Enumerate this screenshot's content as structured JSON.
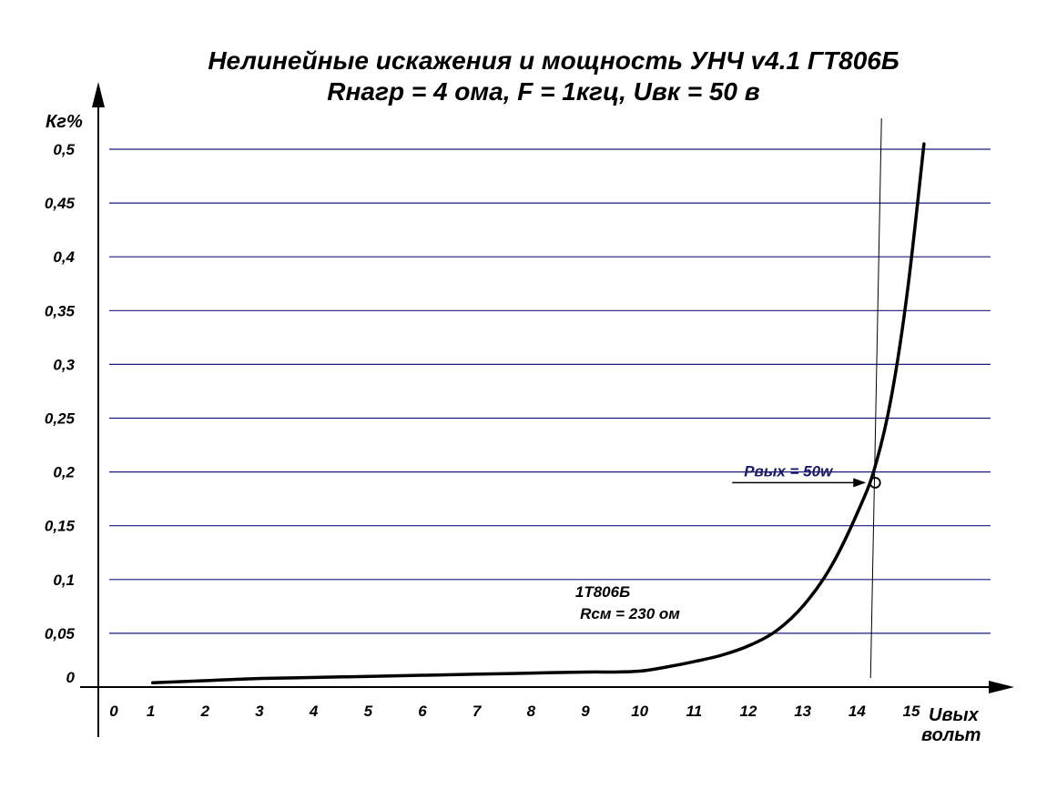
{
  "chart_data": {
    "type": "line",
    "title": "Нелинейные искажения и мощность  УНЧ v4.1 ГТ806Б",
    "subtitle": "Rнагр = 4 ома, F = 1кгц, Uвк = 50 в",
    "ylabel": "Кг%",
    "xlabel_line1": "Uвых",
    "xlabel_line2": "вольт",
    "xlim": [
      0,
      15
    ],
    "ylim": [
      0,
      0.5
    ],
    "x_ticks": [
      "0",
      "1",
      "2",
      "3",
      "4",
      "5",
      "6",
      "7",
      "8",
      "9",
      "10",
      "11",
      "12",
      "13",
      "14",
      "15"
    ],
    "y_ticks": [
      {
        "value": 0,
        "label": "0"
      },
      {
        "value": 0.05,
        "label": "0,05"
      },
      {
        "value": 0.1,
        "label": "0,1"
      },
      {
        "value": 0.15,
        "label": "0,15"
      },
      {
        "value": 0.2,
        "label": "0,2"
      },
      {
        "value": 0.25,
        "label": "0,25"
      },
      {
        "value": 0.3,
        "label": "0,3"
      },
      {
        "value": 0.35,
        "label": "0,35"
      },
      {
        "value": 0.4,
        "label": "0,4"
      },
      {
        "value": 0.45,
        "label": "0,45"
      },
      {
        "value": 0.5,
        "label": "0,5"
      }
    ],
    "grid": "horizontal",
    "series": [
      {
        "name": "1Т806Б",
        "x": [
          1,
          2,
          3,
          4,
          5,
          6,
          7,
          8,
          9,
          9.5,
          10,
          10.5,
          11,
          11.5,
          12,
          12.5,
          13,
          13.5,
          14,
          14.3,
          14.6,
          14.9,
          15.2
        ],
        "y": [
          0.004,
          0.006,
          0.008,
          0.009,
          0.01,
          0.011,
          0.012,
          0.013,
          0.014,
          0.014,
          0.015,
          0.019,
          0.024,
          0.03,
          0.039,
          0.053,
          0.077,
          0.113,
          0.165,
          0.205,
          0.27,
          0.37,
          0.505
        ]
      }
    ],
    "annotations": {
      "series_label": "1Т806Б",
      "series_note": "Rсм = 230 ом",
      "marker_label": "Pвых = 50w",
      "marker_point": {
        "x": 14.3,
        "y": 0.19
      },
      "vertical_line_x": 14.3
    },
    "colors": {
      "grid": "#1a1a80",
      "curve": "#000000",
      "axes": "#000000",
      "annotation": "#1a1a66"
    }
  }
}
